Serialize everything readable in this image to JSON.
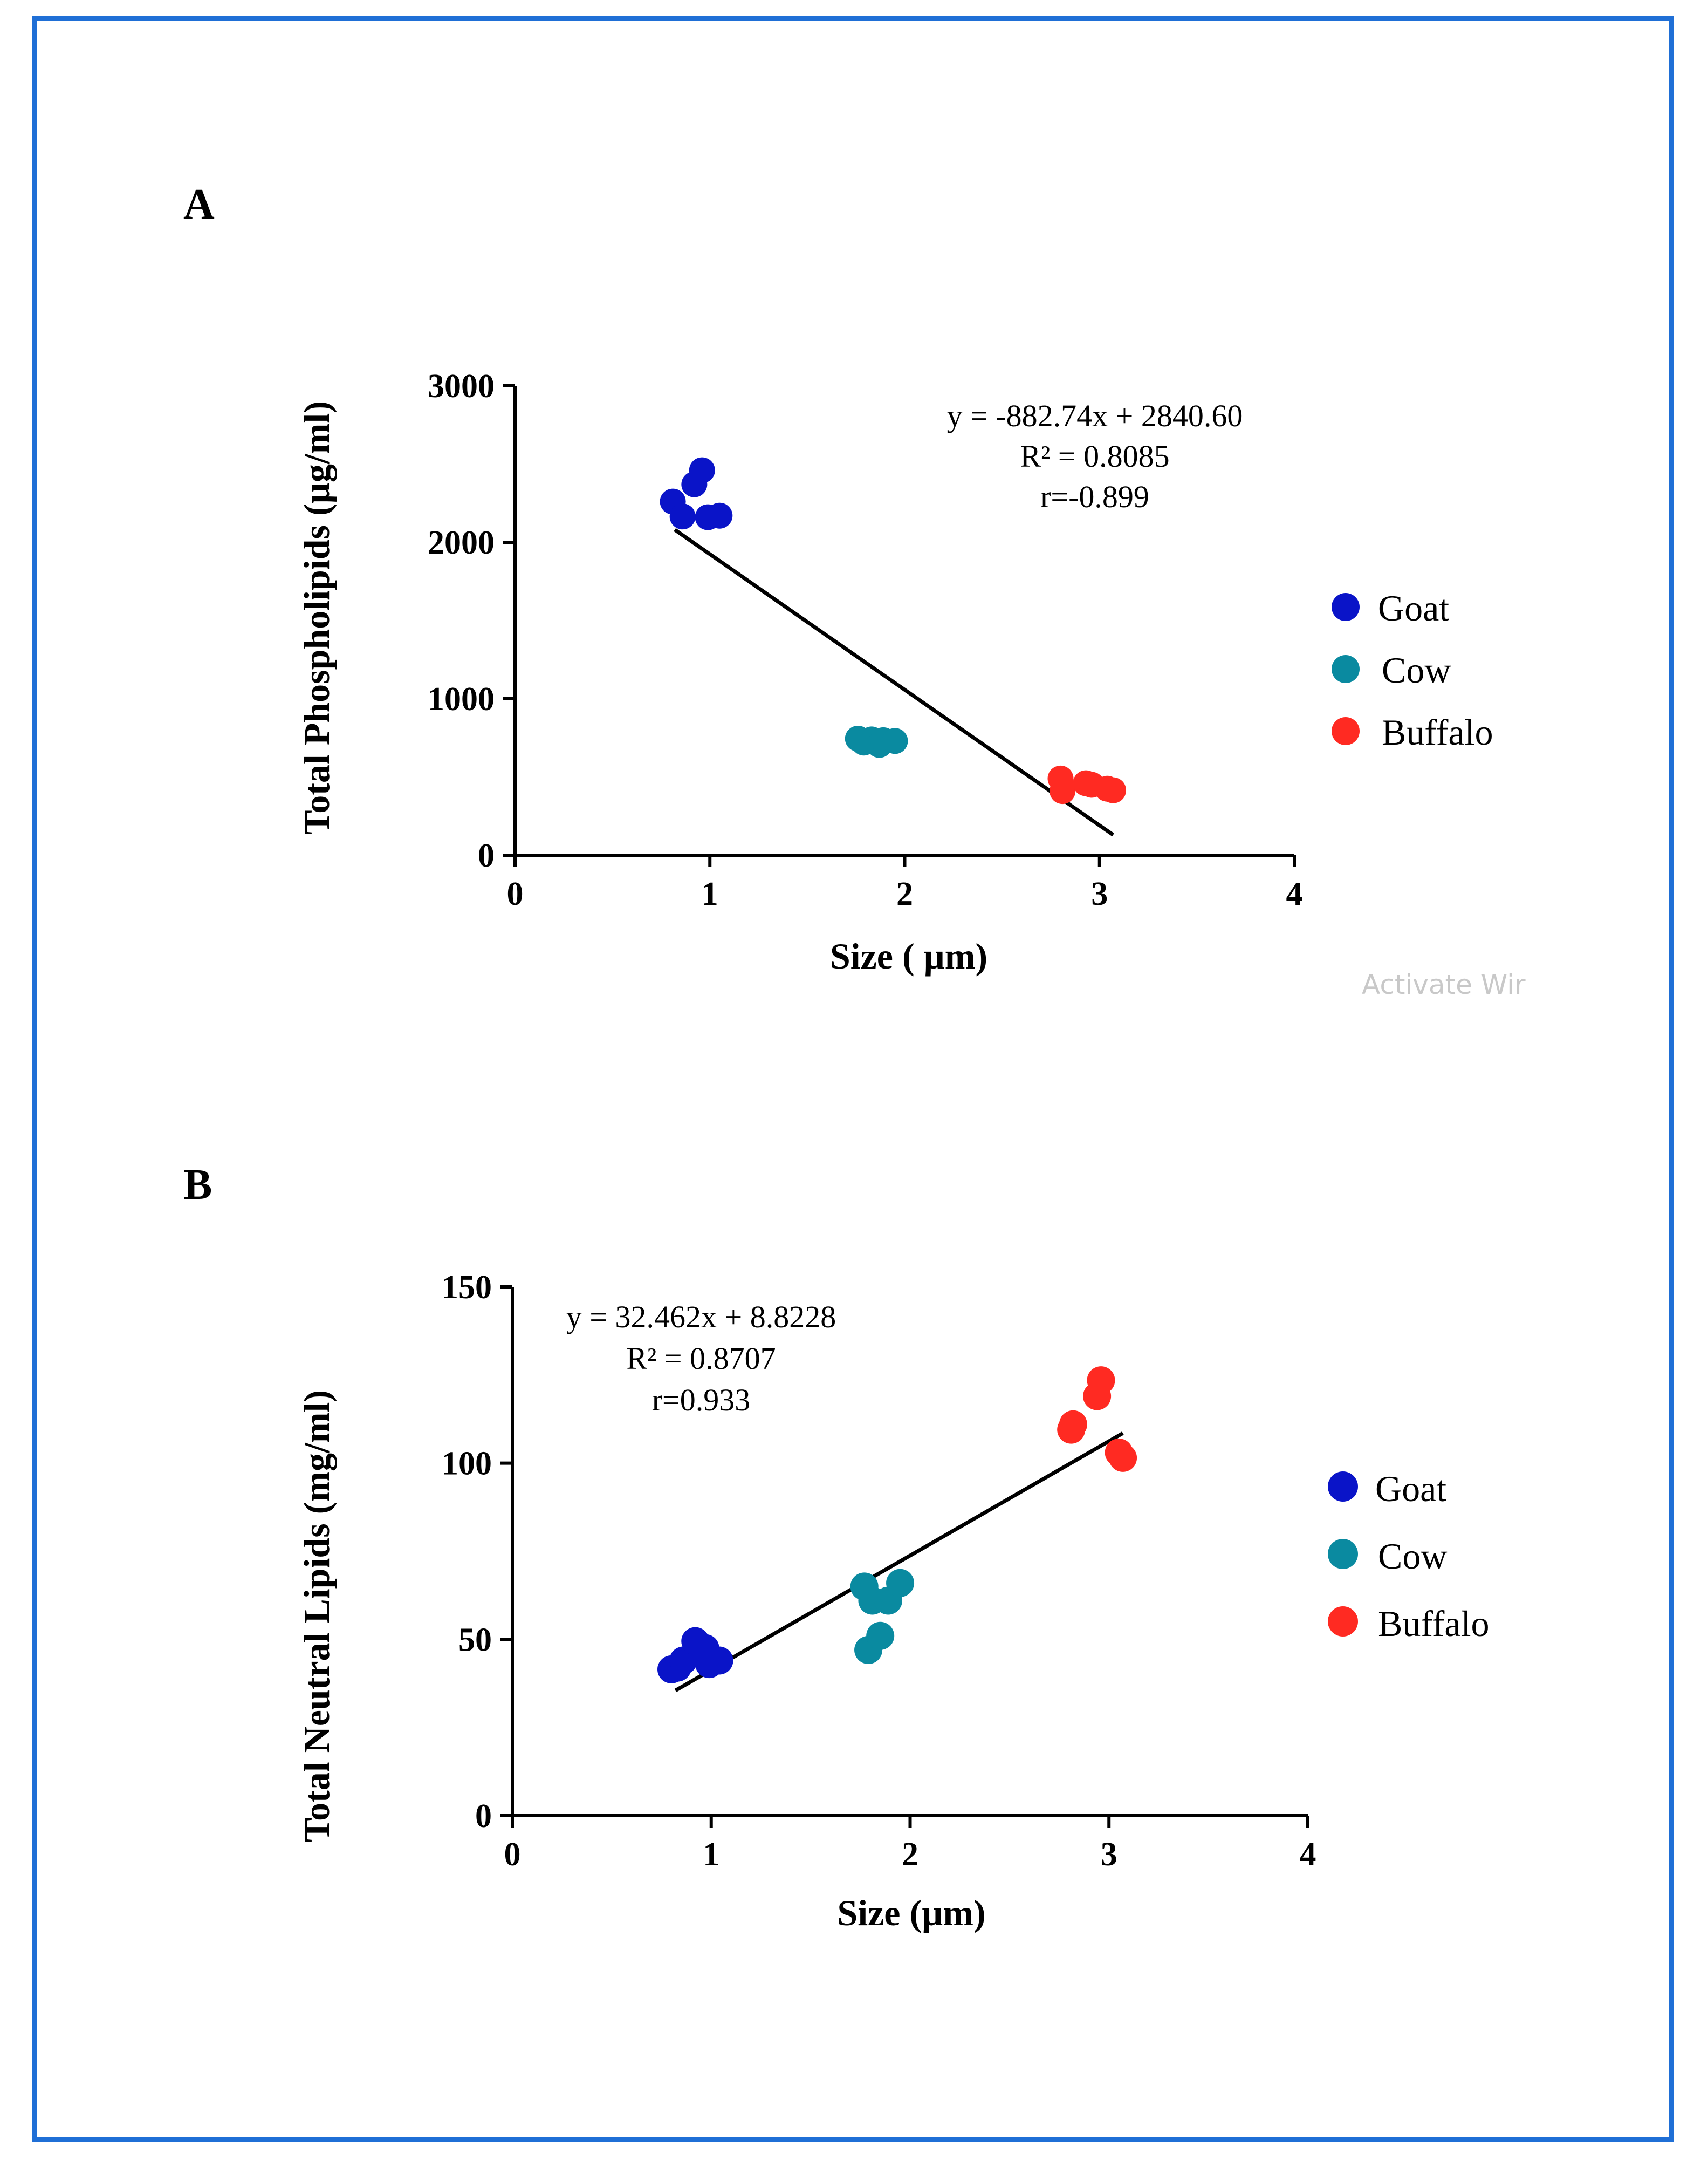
{
  "watermark": "Activate Wir",
  "chart_data": [
    {
      "type": "scatter",
      "panel_label": "A",
      "xlabel": "Size ( µm)",
      "ylabel": "Total Phospholipids (µg/ml)",
      "xlim": [
        0,
        4
      ],
      "ylim": [
        0,
        3000
      ],
      "xticks": [
        0,
        1,
        2,
        3,
        4
      ],
      "yticks": [
        0,
        1000,
        2000,
        3000
      ],
      "annotation": [
        "y = -882.74x + 2840.60",
        "R² = 0.8085",
        "r=-0.899"
      ],
      "trendline": {
        "x": [
          0.82,
          3.07
        ],
        "y": [
          2080,
          130
        ]
      },
      "series": [
        {
          "name": "Goat",
          "color": "#0a14c8",
          "points": [
            [
              0.81,
              2260
            ],
            [
              0.86,
              2165
            ],
            [
              0.92,
              2370
            ],
            [
              0.96,
              2460
            ],
            [
              0.99,
              2160
            ],
            [
              1.05,
              2170
            ]
          ]
        },
        {
          "name": "Cow",
          "color": "#0a8aa0",
          "points": [
            [
              1.76,
              745
            ],
            [
              1.79,
              720
            ],
            [
              1.83,
              740
            ],
            [
              1.87,
              705
            ],
            [
              1.89,
              735
            ],
            [
              1.95,
              730
            ]
          ]
        },
        {
          "name": "Buffalo",
          "color": "#ff2a22",
          "points": [
            [
              2.8,
              490
            ],
            [
              2.81,
              410
            ],
            [
              2.93,
              460
            ],
            [
              2.96,
              450
            ],
            [
              3.04,
              425
            ],
            [
              3.07,
              415
            ]
          ]
        }
      ]
    },
    {
      "type": "scatter",
      "panel_label": "B",
      "xlabel": "Size (µm)",
      "ylabel": "Total Neutral Lipids (mg/ml)",
      "xlim": [
        0,
        4
      ],
      "ylim": [
        0,
        150
      ],
      "xticks": [
        0,
        1,
        2,
        3,
        4
      ],
      "yticks": [
        0,
        50,
        100,
        150
      ],
      "annotation": [
        "y = 32.462x + 8.8228",
        "R² = 0.8707",
        "r=0.933"
      ],
      "trendline": {
        "x": [
          0.82,
          3.07
        ],
        "y": [
          35.5,
          108.5
        ]
      },
      "series": [
        {
          "name": "Goat",
          "color": "#0a14c8",
          "points": [
            [
              0.8,
              41.5
            ],
            [
              0.83,
              42
            ],
            [
              0.86,
              44
            ],
            [
              0.92,
              49.5
            ],
            [
              0.97,
              47.5
            ],
            [
              0.99,
              43
            ],
            [
              1.04,
              44
            ]
          ]
        },
        {
          "name": "Cow",
          "color": "#0a8aa0",
          "points": [
            [
              1.77,
              65
            ],
            [
              1.79,
              47
            ],
            [
              1.81,
              61
            ],
            [
              1.85,
              51
            ],
            [
              1.89,
              61
            ],
            [
              1.95,
              66
            ]
          ]
        },
        {
          "name": "Buffalo",
          "color": "#ff2a22",
          "points": [
            [
              2.81,
              109.5
            ],
            [
              2.82,
              111
            ],
            [
              2.94,
              119
            ],
            [
              2.96,
              123.5
            ],
            [
              3.05,
              103
            ],
            [
              3.07,
              101.5
            ]
          ]
        }
      ]
    }
  ]
}
